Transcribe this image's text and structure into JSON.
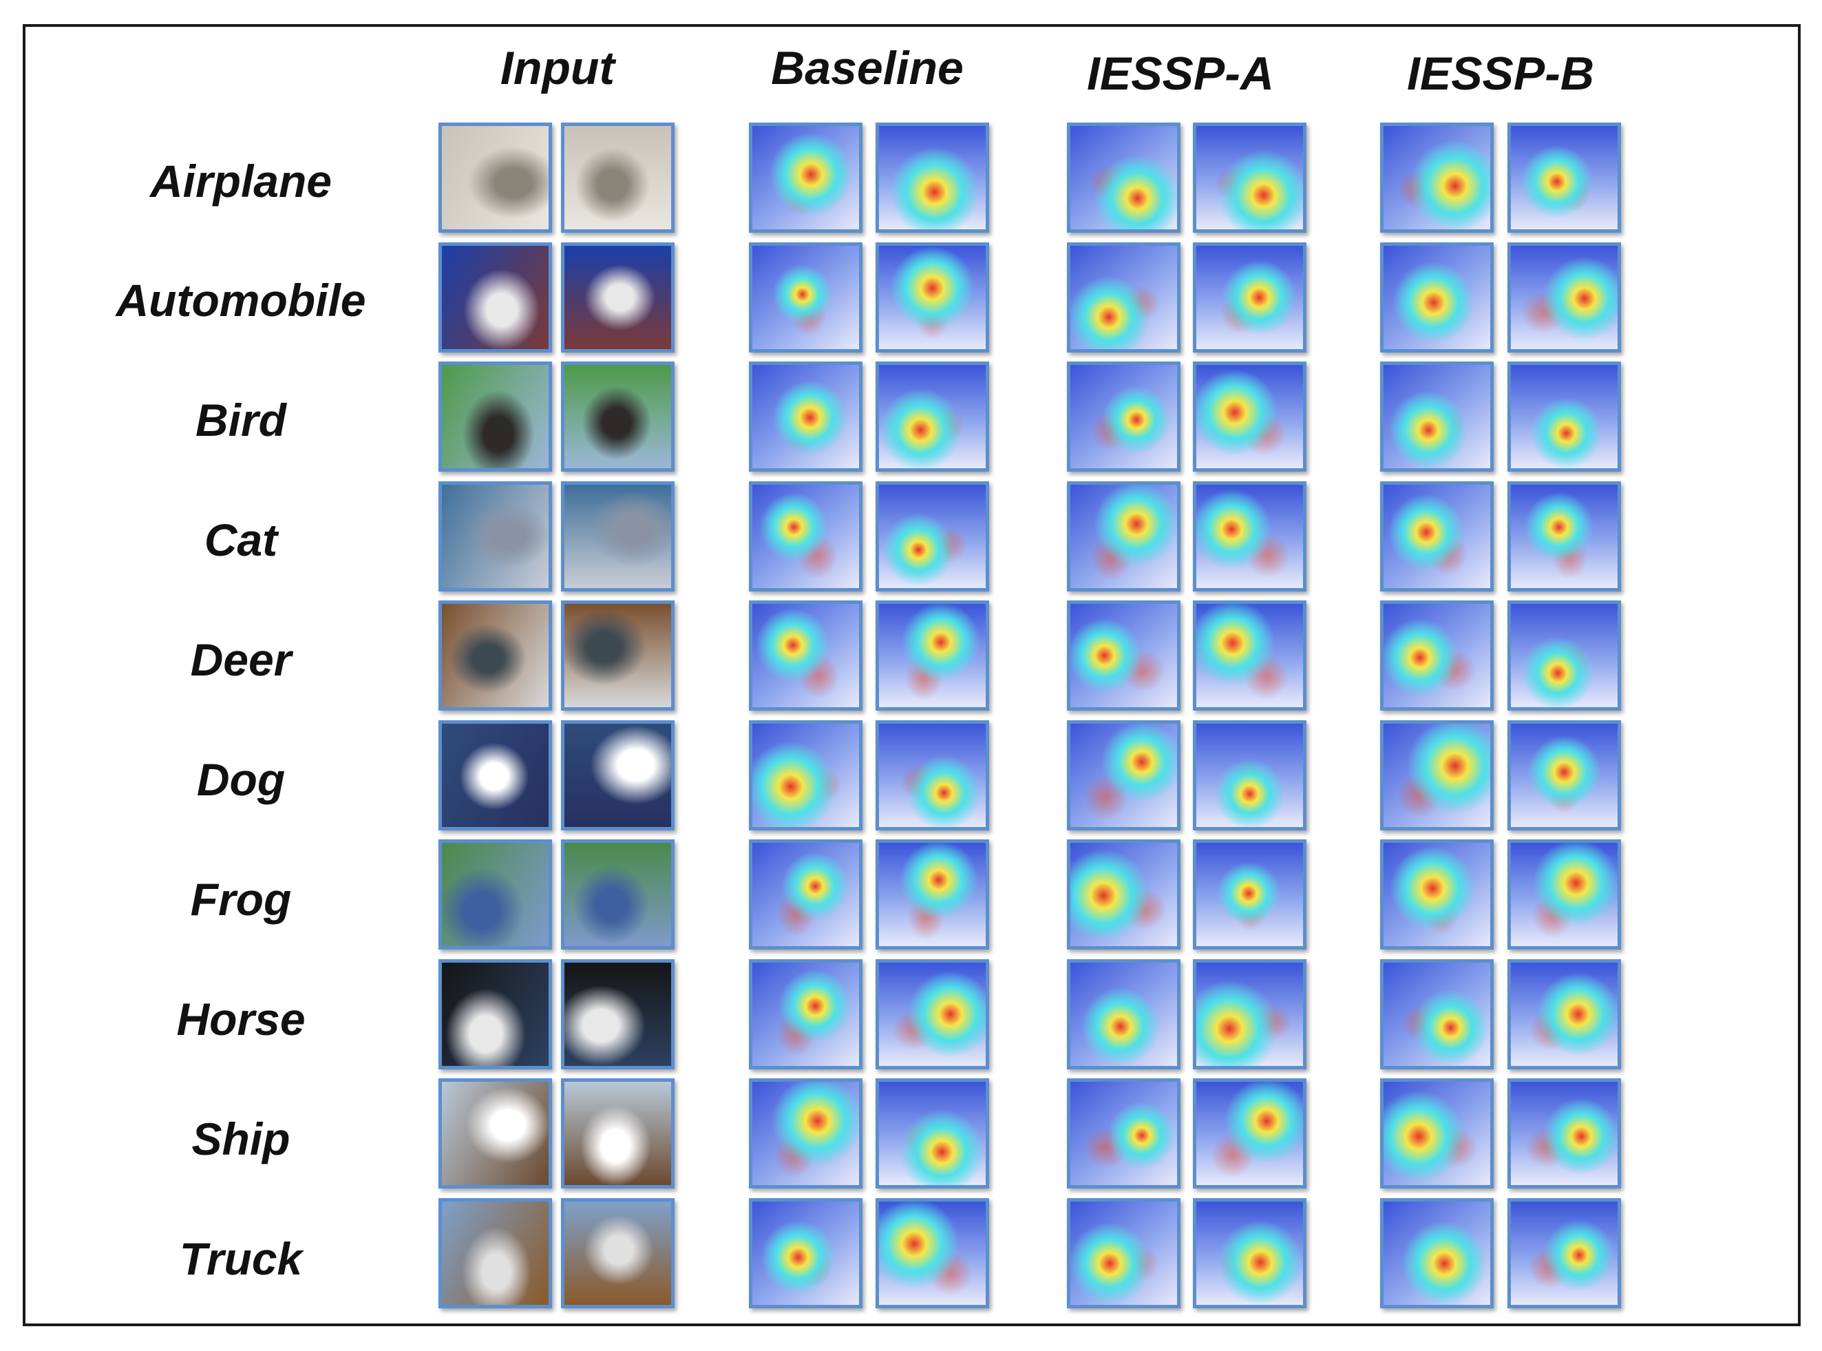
{
  "columns": [
    {
      "key": "input",
      "label": "Input"
    },
    {
      "key": "baseline",
      "label": "Baseline"
    },
    {
      "key": "iessp_a",
      "label": "IESSP-A"
    },
    {
      "key": "iessp_b",
      "label": "IESSP-B"
    }
  ],
  "rows": [
    {
      "label": "Airplane"
    },
    {
      "label": "Automobile"
    },
    {
      "label": "Bird"
    },
    {
      "label": "Cat"
    },
    {
      "label": "Deer"
    },
    {
      "label": "Dog"
    },
    {
      "label": "Frog"
    },
    {
      "label": "Horse"
    },
    {
      "label": "Ship"
    },
    {
      "label": "Truck"
    }
  ],
  "colors": {
    "tile_border": "#5b8fcf",
    "frame_border": "#1a1a1a",
    "heat_bg": "#3b55d9",
    "heat_mid": "#4fe0e8",
    "heat_hot": "#f4e74a",
    "heat_core": "#e8342c"
  },
  "input_palettes": [
    [
      "#c9c2b8",
      "#8b8478",
      "#e9e6e0"
    ],
    [
      "#1b3fa8",
      "#e8e8e8",
      "#7a3a3a"
    ],
    [
      "#4e9a4a",
      "#2e2a2a",
      "#9bb7d6"
    ],
    [
      "#3f6f9a",
      "#8a93a5",
      "#c9cdd6"
    ],
    [
      "#7a5030",
      "#3e4a52",
      "#d8d8d8"
    ],
    [
      "#2f4c7a",
      "#ffffff",
      "#273061"
    ],
    [
      "#4a8a4a",
      "#3e5fa0",
      "#7f9acc"
    ],
    [
      "#151515",
      "#e8e8e8",
      "#2d4160"
    ],
    [
      "#b8c8d8",
      "#ffffff",
      "#6b4a30"
    ],
    [
      "#7fa0c9",
      "#e0e0e0",
      "#8a5a2a"
    ]
  ]
}
